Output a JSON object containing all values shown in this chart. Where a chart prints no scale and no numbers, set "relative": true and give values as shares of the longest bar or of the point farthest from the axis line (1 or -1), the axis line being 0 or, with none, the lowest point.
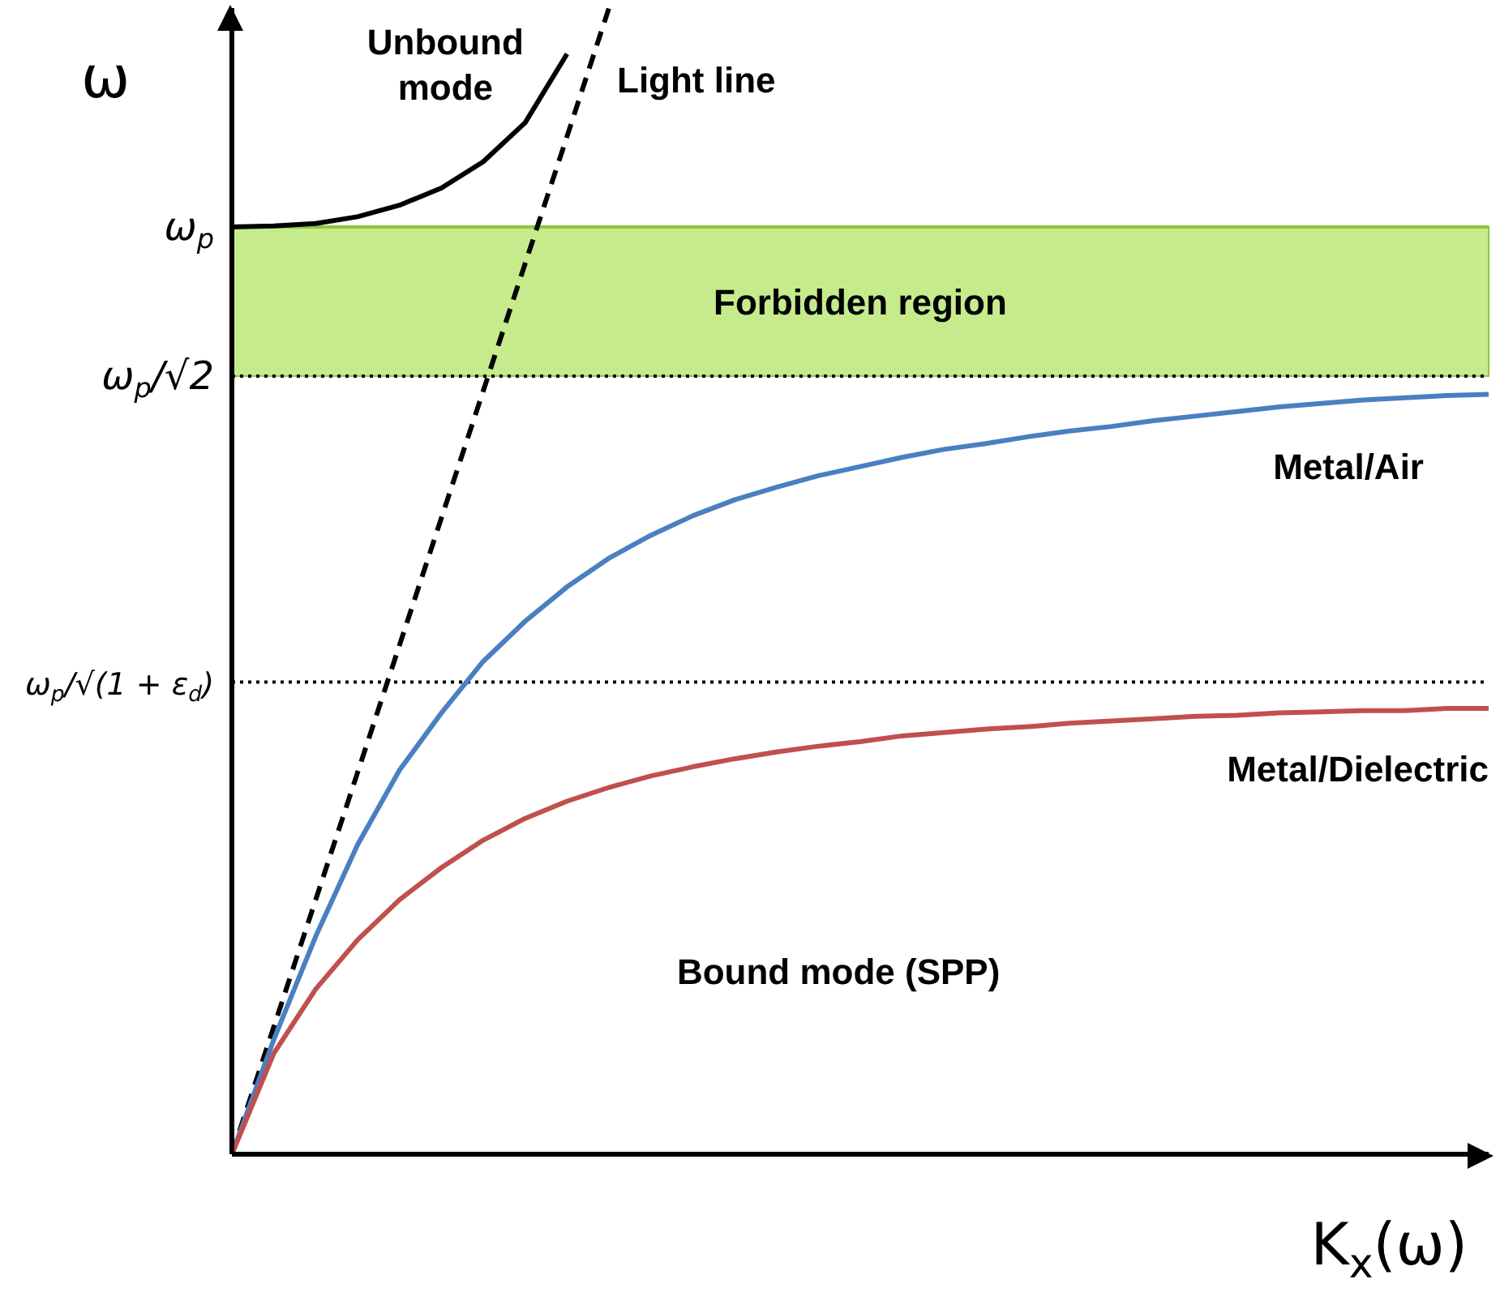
{
  "chart_data": {
    "type": "line",
    "relative": true,
    "ylabel": "ω",
    "xlabel": "K$_{x}$(ω)",
    "categories": [
      null,
      null,
      null,
      null,
      null,
      null,
      null,
      null,
      null,
      null,
      null,
      null,
      null,
      null,
      null,
      null,
      null,
      null,
      null,
      null,
      null,
      null,
      null,
      null,
      null,
      null,
      null,
      null,
      null,
      null,
      null
    ],
    "series": [
      {
        "name": "Unbound mode",
        "color": "#000000",
        "values": [
          0.809,
          0.81,
          0.812,
          0.818,
          0.828,
          0.843,
          0.866,
          0.9,
          0.96,
          null,
          null,
          null,
          null,
          null,
          null,
          null,
          null,
          null,
          null,
          null,
          null,
          null,
          null,
          null,
          null,
          null,
          null,
          null,
          null,
          null,
          null
        ]
      },
      {
        "name": "Light line",
        "color": "#000000",
        "line_style": "dashed",
        "values": [
          0,
          0.111,
          0.222,
          0.333,
          0.444,
          0.555,
          0.666,
          0.777,
          0.888,
          1,
          null,
          null,
          null,
          null,
          null,
          null,
          null,
          null,
          null,
          null,
          null,
          null,
          null,
          null,
          null,
          null,
          null,
          null,
          null,
          null,
          null
        ]
      },
      {
        "name": "Metal/Air",
        "color": "#4a7fc1",
        "values": [
          0,
          0.1,
          0.19,
          0.27,
          0.335,
          0.385,
          0.43,
          0.465,
          0.495,
          0.52,
          0.54,
          0.557,
          0.571,
          0.582,
          0.592,
          0.6,
          0.608,
          0.615,
          0.62,
          0.626,
          0.631,
          0.635,
          0.64,
          0.644,
          0.648,
          0.652,
          0.655,
          0.658,
          0.66,
          0.662,
          0.663
        ]
      },
      {
        "name": "Metal/Dielectric",
        "color": "#c0504d",
        "values": [
          0,
          0.088,
          0.144,
          0.187,
          0.222,
          0.25,
          0.274,
          0.293,
          0.308,
          0.32,
          0.33,
          0.338,
          0.345,
          0.351,
          0.356,
          0.36,
          0.365,
          0.368,
          0.371,
          0.373,
          0.376,
          0.378,
          0.38,
          0.382,
          0.383,
          0.385,
          0.386,
          0.387,
          0.387,
          0.389,
          0.389
        ]
      }
    ],
    "bands": [
      {
        "axis": "y",
        "from": 0.679,
        "to": 0.809,
        "label": "Forbidden region",
        "color": "#c6eb8c"
      }
    ],
    "ref_lines": [
      {
        "axis": "y",
        "value": 0.809,
        "label": "ω$_{p}$",
        "color": "#8dc63f",
        "line_style": "solid"
      },
      {
        "axis": "y",
        "value": 0.679,
        "label": "ω$_{p}$/√2",
        "color": "#000000",
        "line_style": "dotted"
      },
      {
        "axis": "y",
        "value": 0.412,
        "label": "ω$_{p}$/√(1 + ε$_{d}$)",
        "color": "#000000",
        "line_style": "dotted"
      }
    ],
    "annotations": [
      "Bound mode (SPP)"
    ],
    "grid": false,
    "legend": false
  }
}
